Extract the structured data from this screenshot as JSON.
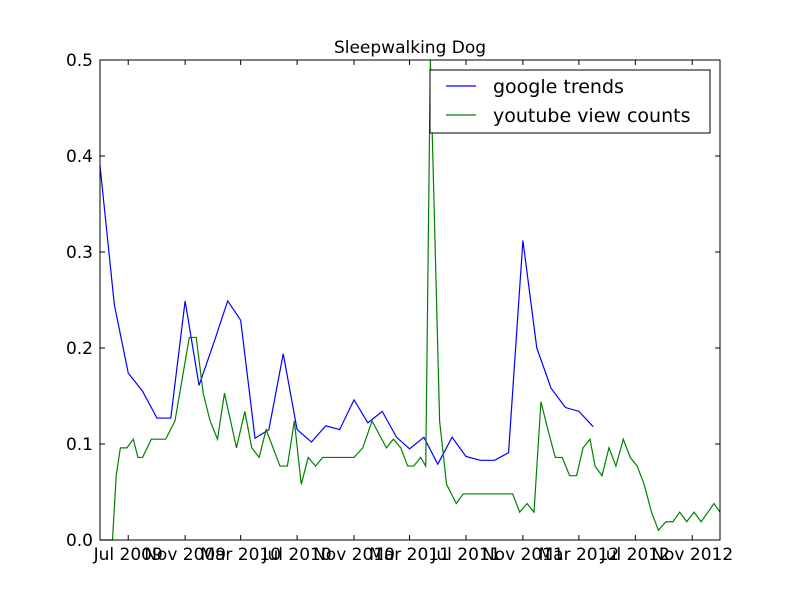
{
  "chart_data": {
    "type": "line",
    "title": "Sleepwalking Dog",
    "xlabel": "",
    "ylabel": "",
    "xlim": [
      "2009-05-01",
      "2012-12-31"
    ],
    "ylim": [
      0,
      0.5
    ],
    "yticks": [
      "0.0",
      "0.1",
      "0.2",
      "0.3",
      "0.4",
      "0.5"
    ],
    "xticks": [
      {
        "date": "2009-07-01",
        "label": "Jul 2009"
      },
      {
        "date": "2009-11-01",
        "label": "Nov 2009"
      },
      {
        "date": "2010-03-01",
        "label": "Mar 2010"
      },
      {
        "date": "2010-07-01",
        "label": "Jul 2010"
      },
      {
        "date": "2010-11-01",
        "label": "Nov 2010"
      },
      {
        "date": "2011-03-01",
        "label": "Mar 2011"
      },
      {
        "date": "2011-07-01",
        "label": "Jul 2011"
      },
      {
        "date": "2011-11-01",
        "label": "Nov 2011"
      },
      {
        "date": "2012-03-01",
        "label": "Mar 2012"
      },
      {
        "date": "2012-07-01",
        "label": "Jul 2012"
      },
      {
        "date": "2012-11-01",
        "label": "Nov 2012"
      }
    ],
    "legend_position": "top-right",
    "grid": false,
    "series": [
      {
        "name": "google trends",
        "color": "#0000ff",
        "points": [
          [
            "2009-05-01",
            0.39
          ],
          [
            "2009-06-01",
            0.245
          ],
          [
            "2009-07-01",
            0.174
          ],
          [
            "2009-08-01",
            0.155
          ],
          [
            "2009-09-01",
            0.127
          ],
          [
            "2009-10-01",
            0.127
          ],
          [
            "2009-11-01",
            0.249
          ],
          [
            "2009-12-01",
            0.161
          ],
          [
            "2010-01-01",
            0.204
          ],
          [
            "2010-02-01",
            0.249
          ],
          [
            "2010-03-01",
            0.229
          ],
          [
            "2010-04-01",
            0.106
          ],
          [
            "2010-05-01",
            0.115
          ],
          [
            "2010-06-01",
            0.194
          ],
          [
            "2010-07-01",
            0.115
          ],
          [
            "2010-08-01",
            0.102
          ],
          [
            "2010-09-01",
            0.119
          ],
          [
            "2010-10-01",
            0.115
          ],
          [
            "2010-11-01",
            0.146
          ],
          [
            "2010-12-01",
            0.122
          ],
          [
            "2011-01-01",
            0.134
          ],
          [
            "2011-02-01",
            0.107
          ],
          [
            "2011-03-01",
            0.095
          ],
          [
            "2011-04-01",
            0.107
          ],
          [
            "2011-05-01",
            0.079
          ],
          [
            "2011-06-01",
            0.107
          ],
          [
            "2011-07-01",
            0.087
          ],
          [
            "2011-08-01",
            0.083
          ],
          [
            "2011-09-01",
            0.083
          ],
          [
            "2011-10-01",
            0.091
          ],
          [
            "2011-11-01",
            0.312
          ],
          [
            "2011-12-01",
            0.2
          ],
          [
            "2012-01-01",
            0.158
          ],
          [
            "2012-02-01",
            0.138
          ],
          [
            "2012-03-01",
            0.134
          ],
          [
            "2012-04-01",
            0.118
          ]
        ]
      },
      {
        "name": "youtube view counts",
        "color": "#008000",
        "points": [
          [
            "2009-05-01",
            0
          ],
          [
            "2009-05-28",
            0
          ],
          [
            "2009-06-05",
            0.067
          ],
          [
            "2009-06-14",
            0.096
          ],
          [
            "2009-06-28",
            0.096
          ],
          [
            "2009-07-12",
            0.105
          ],
          [
            "2009-07-22",
            0.086
          ],
          [
            "2009-08-01",
            0.086
          ],
          [
            "2009-08-20",
            0.105
          ],
          [
            "2009-09-20",
            0.105
          ],
          [
            "2009-10-10",
            0.124
          ],
          [
            "2009-11-10",
            0.211
          ],
          [
            "2009-11-25",
            0.211
          ],
          [
            "2009-12-10",
            0.153
          ],
          [
            "2009-12-25",
            0.124
          ],
          [
            "2010-01-10",
            0.105
          ],
          [
            "2010-01-25",
            0.153
          ],
          [
            "2010-02-20",
            0.096
          ],
          [
            "2010-03-10",
            0.134
          ],
          [
            "2010-03-25",
            0.096
          ],
          [
            "2010-04-10",
            0.086
          ],
          [
            "2010-04-25",
            0.115
          ],
          [
            "2010-05-25",
            0.077
          ],
          [
            "2010-06-10",
            0.077
          ],
          [
            "2010-06-25",
            0.124
          ],
          [
            "2010-07-10",
            0.058
          ],
          [
            "2010-07-25",
            0.086
          ],
          [
            "2010-08-10",
            0.077
          ],
          [
            "2010-08-25",
            0.086
          ],
          [
            "2010-11-01",
            0.086
          ],
          [
            "2010-11-20",
            0.096
          ],
          [
            "2010-12-10",
            0.124
          ],
          [
            "2011-01-10",
            0.096
          ],
          [
            "2011-01-25",
            0.105
          ],
          [
            "2011-02-10",
            0.096
          ],
          [
            "2011-02-25",
            0.077
          ],
          [
            "2011-03-10",
            0.077
          ],
          [
            "2011-03-25",
            0.086
          ],
          [
            "2011-04-05",
            0.077
          ],
          [
            "2011-04-15",
            0.5
          ],
          [
            "2011-05-05",
            0.124
          ],
          [
            "2011-05-20",
            0.058
          ],
          [
            "2011-06-10",
            0.038
          ],
          [
            "2011-06-25",
            0.048
          ],
          [
            "2011-10-10",
            0.048
          ],
          [
            "2011-10-25",
            0.029
          ],
          [
            "2011-11-10",
            0.038
          ],
          [
            "2011-11-25",
            0.029
          ],
          [
            "2011-12-10",
            0.144
          ],
          [
            "2011-12-25",
            0.115
          ],
          [
            "2012-01-10",
            0.086
          ],
          [
            "2012-01-25",
            0.086
          ],
          [
            "2012-02-10",
            0.067
          ],
          [
            "2012-02-25",
            0.067
          ],
          [
            "2012-03-10",
            0.096
          ],
          [
            "2012-03-25",
            0.105
          ],
          [
            "2012-04-05",
            0.077
          ],
          [
            "2012-04-20",
            0.067
          ],
          [
            "2012-05-05",
            0.096
          ],
          [
            "2012-05-20",
            0.077
          ],
          [
            "2012-06-05",
            0.105
          ],
          [
            "2012-06-20",
            0.086
          ],
          [
            "2012-07-05",
            0.077
          ],
          [
            "2012-07-20",
            0.058
          ],
          [
            "2012-08-05",
            0.029
          ],
          [
            "2012-08-20",
            0.01
          ],
          [
            "2012-09-05",
            0.019
          ],
          [
            "2012-09-20",
            0.019
          ],
          [
            "2012-10-05",
            0.029
          ],
          [
            "2012-10-20",
            0.019
          ],
          [
            "2012-11-05",
            0.029
          ],
          [
            "2012-11-20",
            0.019
          ],
          [
            "2012-12-05",
            0.029
          ],
          [
            "2012-12-18",
            0.038
          ],
          [
            "2012-12-31",
            0.029
          ]
        ]
      }
    ]
  }
}
